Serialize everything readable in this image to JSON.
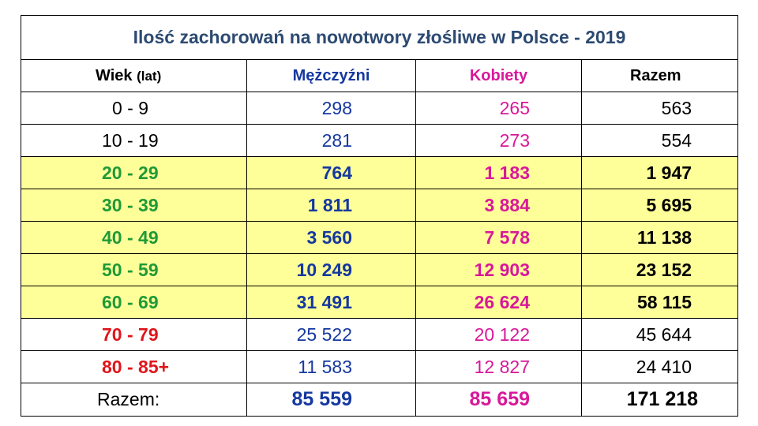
{
  "title": "Ilość zachorowań na nowotwory złośliwe w Polsce - 2019",
  "headers": {
    "age": "Wiek",
    "age_unit": "(lat)",
    "men": "Mężczyźni",
    "women": "Kobiety",
    "total": "Razem"
  },
  "rows": [
    {
      "age": "0 - 9",
      "men": "298",
      "women": "265",
      "total": "563"
    },
    {
      "age": "10 - 19",
      "men": "281",
      "women": "273",
      "total": "554"
    },
    {
      "age": "20 - 29",
      "men": "764",
      "women": "1 183",
      "total": "1 947"
    },
    {
      "age": "30 - 39",
      "men": "1 811",
      "women": "3 884",
      "total": "5 695"
    },
    {
      "age": "40 - 49",
      "men": "3 560",
      "women": "7 578",
      "total": "11 138"
    },
    {
      "age": "50 - 59",
      "men": "10 249",
      "women": "12 903",
      "total": "23 152"
    },
    {
      "age": "60 - 69",
      "men": "31 491",
      "women": "26 624",
      "total": "58 115"
    },
    {
      "age": "70 - 79",
      "men": "25 522",
      "women": "20 122",
      "total": "45 644"
    },
    {
      "age": "80 - 85+",
      "men": "11 583",
      "women": "12 827",
      "total": "24 410"
    }
  ],
  "totals": {
    "label": "Razem:",
    "men": "85 559",
    "women": "85 659",
    "total": "171 218"
  },
  "colors": {
    "title": "#2c4a72",
    "men": "#1538a0",
    "women": "#d8189a",
    "highlight_row": "#ffff99",
    "age_green": "#1f9a37",
    "age_red": "#e0151b"
  }
}
